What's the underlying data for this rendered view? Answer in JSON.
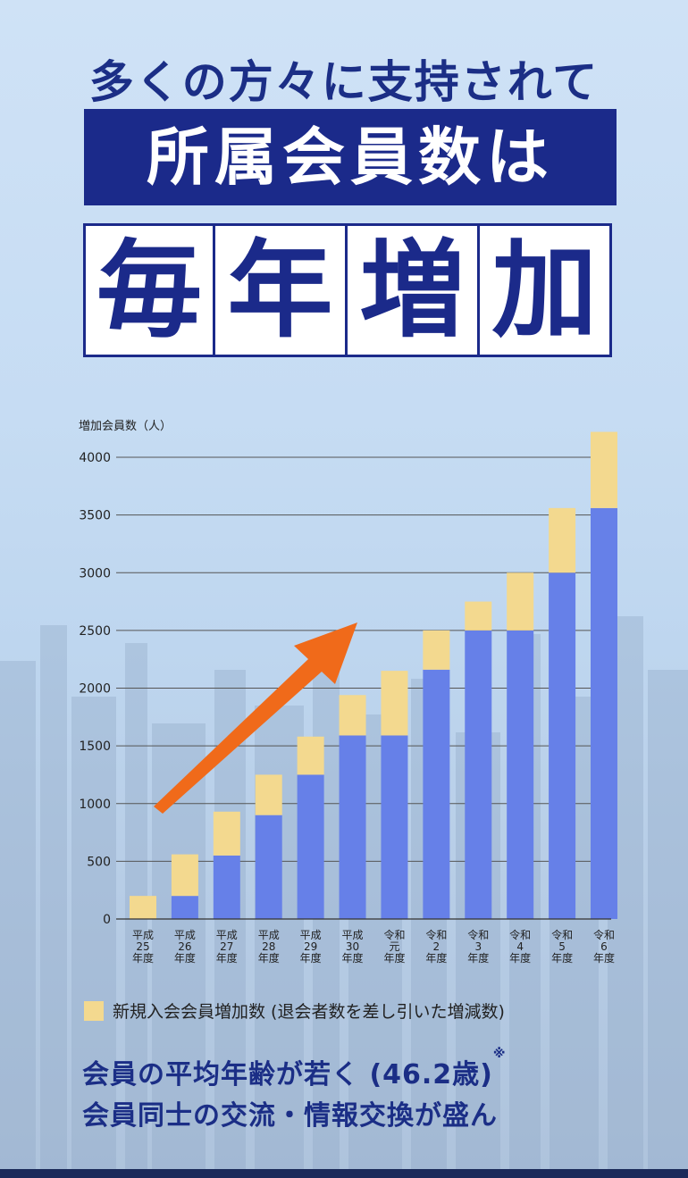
{
  "headline": {
    "line1": "多くの方々に支持されて",
    "line2": "所属会員数は",
    "boxes": [
      "毎",
      "年",
      "増",
      "加"
    ]
  },
  "chart_data": {
    "type": "bar",
    "ylabel": "増加会員数（人）",
    "ylim": [
      0,
      4000
    ],
    "yticks": [
      0,
      500,
      1000,
      1500,
      2000,
      2500,
      3000,
      3500,
      4000
    ],
    "categories": [
      [
        "平成",
        "25",
        "年度"
      ],
      [
        "平成",
        "26",
        "年度"
      ],
      [
        "平成",
        "27",
        "年度"
      ],
      [
        "平成",
        "28",
        "年度"
      ],
      [
        "平成",
        "29",
        "年度"
      ],
      [
        "平成",
        "30",
        "年度"
      ],
      [
        "令和",
        "元",
        "年度"
      ],
      [
        "令和",
        "2",
        "年度"
      ],
      [
        "令和",
        "3",
        "年度"
      ],
      [
        "令和",
        "4",
        "年度"
      ],
      [
        "令和",
        "5",
        "年度"
      ],
      [
        "令和",
        "6",
        "年度"
      ]
    ],
    "series": [
      {
        "values": [
          0,
          200,
          550,
          900,
          1250,
          1590,
          1590,
          2160,
          2500,
          2500,
          3000,
          3560
        ],
        "color": "#6680e8"
      },
      {
        "name": "新規入会会員増加数 (退会者数を差し引いた増減数)",
        "values": [
          200,
          360,
          380,
          350,
          330,
          350,
          560,
          340,
          250,
          500,
          560,
          660
        ],
        "color": "#f3d98f"
      }
    ],
    "grid": true,
    "arrow_color": "#f06a1a"
  },
  "legend": {
    "label": "新規入会会員増加数 (退会者数を差し引いた増減数)"
  },
  "features": {
    "line1": "会員の平均年齢が若く (46.2歳)",
    "note": "※",
    "line2": "会員同士の交流・情報交換が盛ん"
  }
}
